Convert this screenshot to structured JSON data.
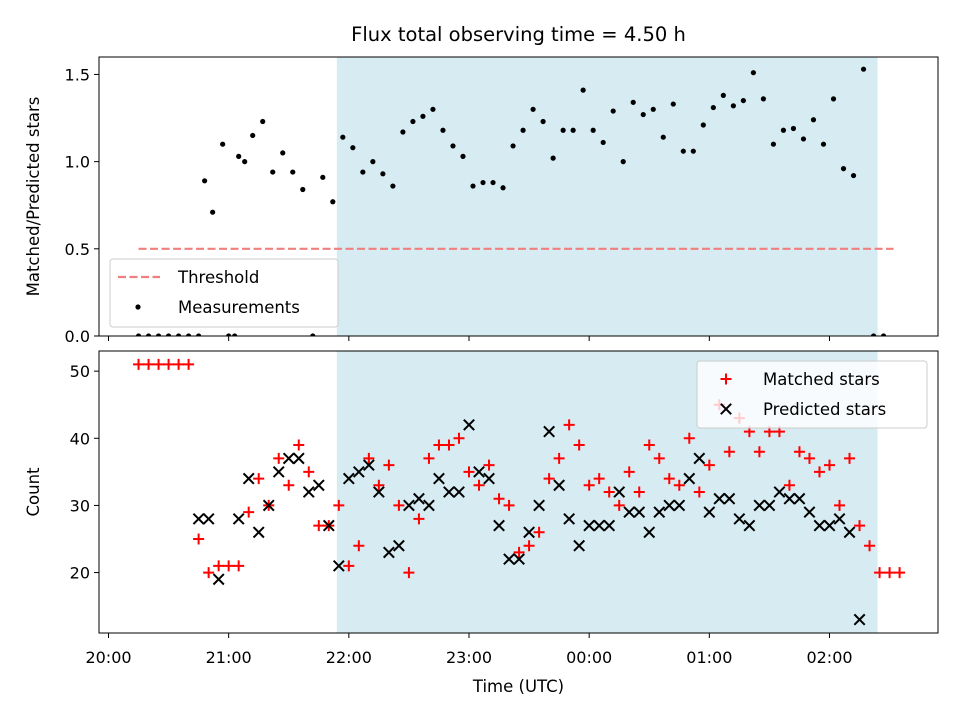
{
  "chart_data": [
    {
      "type": "scatter",
      "title": "Flux total observing time = 4.50 h",
      "xlabel": "",
      "ylabel": "Matched/Predicted stars",
      "ylim": [
        0,
        1.6
      ],
      "y_ticks": [
        0.0,
        0.5,
        1.0,
        1.5
      ],
      "y_tick_labels": [
        "0.0",
        "0.5",
        "1.0",
        "1.5"
      ],
      "shaded_span": {
        "from": "21:54",
        "to": "02:24",
        "color": "#add8e6"
      },
      "legend_position": "lower-left",
      "threshold": {
        "name": "Threshold",
        "value": 0.5,
        "x_from": "20:15",
        "x_to": "02:32",
        "color": "#f08080",
        "style": "dashed"
      },
      "series": [
        {
          "name": "Measurements",
          "marker": "dot",
          "color": "#000000",
          "points": [
            [
              "20:15",
              0
            ],
            [
              "20:20",
              0
            ],
            [
              "20:25",
              0
            ],
            [
              "20:30",
              0
            ],
            [
              "20:35",
              0
            ],
            [
              "20:40",
              0
            ],
            [
              "20:45",
              0
            ],
            [
              "20:48",
              0.89
            ],
            [
              "20:52",
              0.71
            ],
            [
              "20:57",
              1.1
            ],
            [
              "21:00",
              0
            ],
            [
              "21:03",
              0
            ],
            [
              "21:05",
              1.03
            ],
            [
              "21:08",
              1.0
            ],
            [
              "21:12",
              1.15
            ],
            [
              "21:17",
              1.23
            ],
            [
              "21:22",
              0.94
            ],
            [
              "21:27",
              1.05
            ],
            [
              "21:32",
              0.94
            ],
            [
              "21:37",
              0.84
            ],
            [
              "21:42",
              0
            ],
            [
              "21:47",
              0.91
            ],
            [
              "21:52",
              0.77
            ],
            [
              "21:57",
              1.14
            ],
            [
              "22:02",
              1.08
            ],
            [
              "22:07",
              0.94
            ],
            [
              "22:12",
              1.0
            ],
            [
              "22:17",
              0.93
            ],
            [
              "22:22",
              0.86
            ],
            [
              "22:27",
              1.17
            ],
            [
              "22:32",
              1.23
            ],
            [
              "22:37",
              1.26
            ],
            [
              "22:42",
              1.3
            ],
            [
              "22:47",
              1.18
            ],
            [
              "22:52",
              1.09
            ],
            [
              "22:57",
              1.03
            ],
            [
              "23:02",
              0.86
            ],
            [
              "23:07",
              0.88
            ],
            [
              "23:12",
              0.88
            ],
            [
              "23:17",
              0.85
            ],
            [
              "23:22",
              1.09
            ],
            [
              "23:27",
              1.18
            ],
            [
              "23:32",
              1.3
            ],
            [
              "23:37",
              1.23
            ],
            [
              "23:42",
              1.02
            ],
            [
              "23:47",
              1.18
            ],
            [
              "23:52",
              1.18
            ],
            [
              "23:57",
              1.41
            ],
            [
              "00:02",
              1.18
            ],
            [
              "00:07",
              1.11
            ],
            [
              "00:12",
              1.29
            ],
            [
              "00:17",
              1.0
            ],
            [
              "00:22",
              1.34
            ],
            [
              "00:27",
              1.27
            ],
            [
              "00:32",
              1.3
            ],
            [
              "00:37",
              1.14
            ],
            [
              "00:42",
              1.33
            ],
            [
              "00:47",
              1.06
            ],
            [
              "00:52",
              1.06
            ],
            [
              "00:57",
              1.21
            ],
            [
              "01:02",
              1.31
            ],
            [
              "01:07",
              1.38
            ],
            [
              "01:12",
              1.32
            ],
            [
              "01:17",
              1.35
            ],
            [
              "01:22",
              1.51
            ],
            [
              "01:27",
              1.36
            ],
            [
              "01:32",
              1.1
            ],
            [
              "01:37",
              1.18
            ],
            [
              "01:42",
              1.19
            ],
            [
              "01:47",
              1.13
            ],
            [
              "01:52",
              1.24
            ],
            [
              "01:57",
              1.1
            ],
            [
              "02:02",
              1.36
            ],
            [
              "02:07",
              0.96
            ],
            [
              "02:12",
              0.92
            ],
            [
              "02:17",
              1.53
            ],
            [
              "02:22",
              0
            ],
            [
              "02:27",
              0
            ]
          ]
        }
      ]
    },
    {
      "type": "scatter",
      "title": "",
      "xlabel": "Time (UTC)",
      "ylabel": "Count",
      "ylim": [
        11,
        53
      ],
      "y_ticks": [
        20,
        30,
        40,
        50
      ],
      "y_tick_labels": [
        "20",
        "30",
        "40",
        "50"
      ],
      "x_ticks": [
        "20:00",
        "21:00",
        "22:00",
        "23:00",
        "00:00",
        "01:00",
        "02:00"
      ],
      "x_tick_labels": [
        "20:00",
        "21:00",
        "22:00",
        "23:00",
        "00:00",
        "01:00",
        "02:00"
      ],
      "shaded_span": {
        "from": "21:54",
        "to": "02:24",
        "color": "#add8e6"
      },
      "legend_position": "top-right",
      "series": [
        {
          "name": "Matched stars",
          "marker": "plus",
          "color": "#ff0000",
          "points": [
            [
              "20:15",
              51
            ],
            [
              "20:20",
              51
            ],
            [
              "20:25",
              51
            ],
            [
              "20:30",
              51
            ],
            [
              "20:35",
              51
            ],
            [
              "20:40",
              51
            ],
            [
              "20:45",
              25
            ],
            [
              "20:50",
              20
            ],
            [
              "20:55",
              21
            ],
            [
              "21:00",
              21
            ],
            [
              "21:05",
              21
            ],
            [
              "21:10",
              29
            ],
            [
              "21:15",
              34
            ],
            [
              "21:20",
              30
            ],
            [
              "21:25",
              37
            ],
            [
              "21:30",
              33
            ],
            [
              "21:35",
              39
            ],
            [
              "21:40",
              35
            ],
            [
              "21:45",
              27
            ],
            [
              "21:50",
              27
            ],
            [
              "21:55",
              30
            ],
            [
              "22:00",
              21
            ],
            [
              "22:05",
              24
            ],
            [
              "22:10",
              37
            ],
            [
              "22:15",
              33
            ],
            [
              "22:20",
              36
            ],
            [
              "22:25",
              30
            ],
            [
              "22:30",
              20
            ],
            [
              "22:35",
              28
            ],
            [
              "22:40",
              37
            ],
            [
              "22:45",
              39
            ],
            [
              "22:50",
              39
            ],
            [
              "22:55",
              40
            ],
            [
              "23:00",
              35
            ],
            [
              "23:05",
              33
            ],
            [
              "23:10",
              36
            ],
            [
              "23:15",
              31
            ],
            [
              "23:20",
              30
            ],
            [
              "23:25",
              23
            ],
            [
              "23:30",
              24
            ],
            [
              "23:35",
              26
            ],
            [
              "23:40",
              34
            ],
            [
              "23:45",
              37
            ],
            [
              "23:50",
              42
            ],
            [
              "23:55",
              39
            ],
            [
              "00:00",
              33
            ],
            [
              "00:05",
              34
            ],
            [
              "00:10",
              32
            ],
            [
              "00:15",
              30
            ],
            [
              "00:20",
              35
            ],
            [
              "00:25",
              32
            ],
            [
              "00:30",
              39
            ],
            [
              "00:35",
              37
            ],
            [
              "00:40",
              34
            ],
            [
              "00:45",
              33
            ],
            [
              "00:50",
              40
            ],
            [
              "00:55",
              32
            ],
            [
              "01:00",
              36
            ],
            [
              "01:05",
              45
            ],
            [
              "01:10",
              38
            ],
            [
              "01:15",
              43
            ],
            [
              "01:20",
              41
            ],
            [
              "01:25",
              38
            ],
            [
              "01:30",
              41
            ],
            [
              "01:35",
              41
            ],
            [
              "01:40",
              33
            ],
            [
              "01:45",
              38
            ],
            [
              "01:50",
              37
            ],
            [
              "01:55",
              35
            ],
            [
              "02:00",
              36
            ],
            [
              "02:05",
              30
            ],
            [
              "02:10",
              37
            ],
            [
              "02:15",
              27
            ],
            [
              "02:20",
              24
            ],
            [
              "02:25",
              20
            ],
            [
              "02:30",
              20
            ],
            [
              "02:35",
              20
            ]
          ]
        },
        {
          "name": "Predicted stars",
          "marker": "x",
          "color": "#000000",
          "points": [
            [
              "20:45",
              28
            ],
            [
              "20:50",
              28
            ],
            [
              "20:55",
              19
            ],
            [
              "21:05",
              28
            ],
            [
              "21:10",
              34
            ],
            [
              "21:15",
              26
            ],
            [
              "21:20",
              30
            ],
            [
              "21:25",
              35
            ],
            [
              "21:30",
              37
            ],
            [
              "21:35",
              37
            ],
            [
              "21:40",
              32
            ],
            [
              "21:45",
              33
            ],
            [
              "21:50",
              27
            ],
            [
              "21:55",
              21
            ],
            [
              "22:00",
              34
            ],
            [
              "22:05",
              35
            ],
            [
              "22:10",
              36
            ],
            [
              "22:15",
              32
            ],
            [
              "22:20",
              23
            ],
            [
              "22:25",
              24
            ],
            [
              "22:30",
              30
            ],
            [
              "22:35",
              31
            ],
            [
              "22:40",
              30
            ],
            [
              "22:45",
              34
            ],
            [
              "22:50",
              32
            ],
            [
              "22:55",
              32
            ],
            [
              "23:00",
              42
            ],
            [
              "23:05",
              35
            ],
            [
              "23:10",
              34
            ],
            [
              "23:15",
              27
            ],
            [
              "23:20",
              22
            ],
            [
              "23:25",
              22
            ],
            [
              "23:30",
              26
            ],
            [
              "23:35",
              30
            ],
            [
              "23:40",
              41
            ],
            [
              "23:45",
              33
            ],
            [
              "23:50",
              28
            ],
            [
              "23:55",
              24
            ],
            [
              "00:00",
              27
            ],
            [
              "00:05",
              27
            ],
            [
              "00:10",
              27
            ],
            [
              "00:15",
              32
            ],
            [
              "00:20",
              29
            ],
            [
              "00:25",
              29
            ],
            [
              "00:30",
              26
            ],
            [
              "00:35",
              29
            ],
            [
              "00:40",
              30
            ],
            [
              "00:45",
              30
            ],
            [
              "00:50",
              34
            ],
            [
              "00:55",
              37
            ],
            [
              "01:00",
              29
            ],
            [
              "01:05",
              31
            ],
            [
              "01:10",
              31
            ],
            [
              "01:15",
              28
            ],
            [
              "01:20",
              27
            ],
            [
              "01:25",
              30
            ],
            [
              "01:30",
              30
            ],
            [
              "01:35",
              32
            ],
            [
              "01:40",
              31
            ],
            [
              "01:45",
              31
            ],
            [
              "01:50",
              29
            ],
            [
              "01:55",
              27
            ],
            [
              "02:00",
              27
            ],
            [
              "02:05",
              28
            ],
            [
              "02:10",
              26
            ],
            [
              "02:15",
              13
            ]
          ]
        }
      ]
    }
  ]
}
